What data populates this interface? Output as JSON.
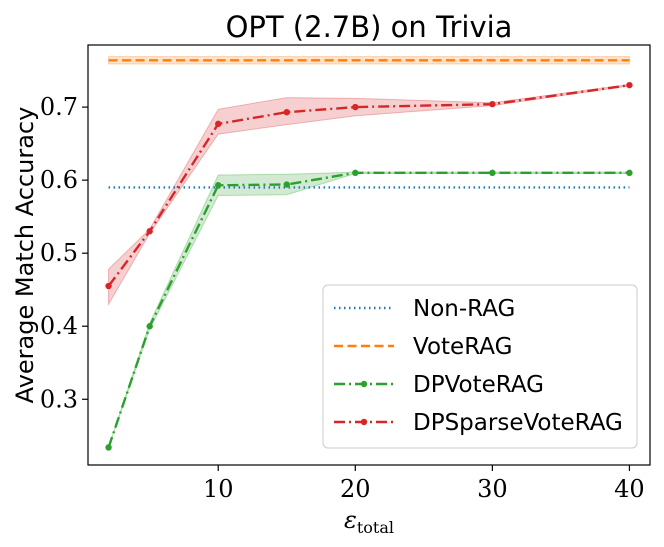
{
  "chart_data": {
    "type": "line",
    "title": "OPT (2.7B) on Trivia",
    "xlabel": "ε",
    "xlabel_subscript": "total",
    "ylabel": "Average Match Accuracy",
    "xlim": [
      0.5,
      41.5
    ],
    "ylim": [
      0.21,
      0.785
    ],
    "xticks": [
      10,
      20,
      30,
      40
    ],
    "xtick_labels": [
      "10",
      "20",
      "30",
      "40"
    ],
    "yticks": [
      0.3,
      0.4,
      0.5,
      0.6,
      0.7
    ],
    "ytick_labels": [
      "0.3",
      "0.4",
      "0.5",
      "0.6",
      "0.7"
    ],
    "grid": false,
    "legend_position": "lower-right",
    "series": [
      {
        "name": "Non-RAG",
        "style": "dotted",
        "color": "#1f77b4",
        "x": [
          2,
          40
        ],
        "values": [
          0.59,
          0.59
        ]
      },
      {
        "name": "VoteRAG",
        "style": "dashed",
        "color": "#ff7f0e",
        "x": [
          2,
          40
        ],
        "values": [
          0.764,
          0.764
        ],
        "band_lower": [
          0.759,
          0.759
        ],
        "band_upper": [
          0.769,
          0.769
        ]
      },
      {
        "name": "DPVoteRAG",
        "style": "dashdot",
        "color": "#2ca02c",
        "markers": true,
        "x": [
          2,
          5,
          10,
          15,
          20,
          30,
          40
        ],
        "values": [
          0.234,
          0.4,
          0.593,
          0.594,
          0.61,
          0.61,
          0.61
        ],
        "band_lower": [
          0.234,
          0.396,
          0.579,
          0.58,
          0.609,
          0.609,
          0.609
        ],
        "band_upper": [
          0.234,
          0.404,
          0.607,
          0.608,
          0.611,
          0.611,
          0.611
        ]
      },
      {
        "name": "DPSparseVoteRAG",
        "style": "dashdot",
        "color": "#d62728",
        "markers": true,
        "x": [
          2,
          5,
          10,
          15,
          20,
          30,
          40
        ],
        "values": [
          0.455,
          0.53,
          0.677,
          0.693,
          0.7,
          0.704,
          0.73
        ],
        "band_lower": [
          0.43,
          0.527,
          0.663,
          0.676,
          0.688,
          0.702,
          0.729
        ],
        "band_upper": [
          0.478,
          0.533,
          0.697,
          0.713,
          0.712,
          0.706,
          0.731
        ]
      }
    ]
  }
}
